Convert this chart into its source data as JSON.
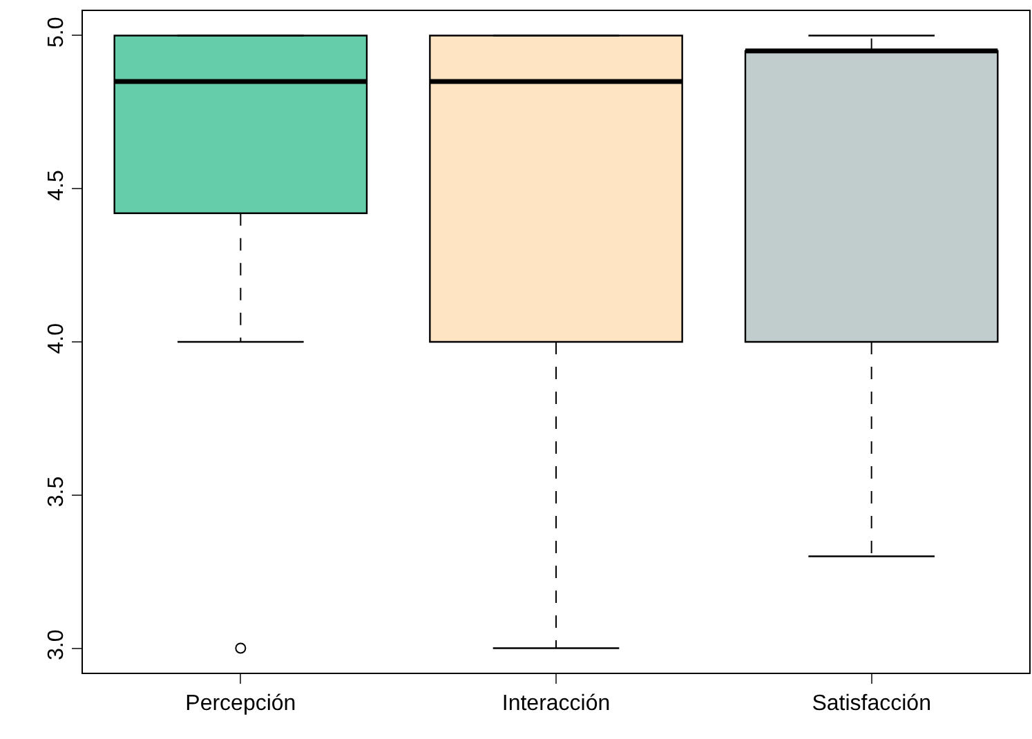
{
  "chart_data": {
    "type": "box",
    "categories": [
      "Percepción",
      "Interacción",
      "Satisfacción"
    ],
    "colors": [
      "#66cdaa",
      "#ffe4c4",
      "#c1cdcd"
    ],
    "boxes": [
      {
        "low": 4.0,
        "q1": 4.42,
        "median": 4.85,
        "q3": 5.0,
        "high": 5.0,
        "outliers": [
          3.0
        ]
      },
      {
        "low": 3.0,
        "q1": 4.0,
        "median": 4.85,
        "q3": 5.0,
        "high": 5.0
      },
      {
        "low": 3.3,
        "q1": 4.0,
        "median": 4.95,
        "q3": 4.95,
        "high": 5.0
      }
    ],
    "ylim": [
      2.92,
      5.08
    ],
    "yticks": [
      {
        "value": 3,
        "label": "3.0"
      },
      {
        "value": 3.5,
        "label": "3.5"
      },
      {
        "value": 4,
        "label": "4.0"
      },
      {
        "value": 4.5,
        "label": "4.5"
      },
      {
        "value": 5,
        "label": "5.0"
      }
    ],
    "grid": false
  }
}
